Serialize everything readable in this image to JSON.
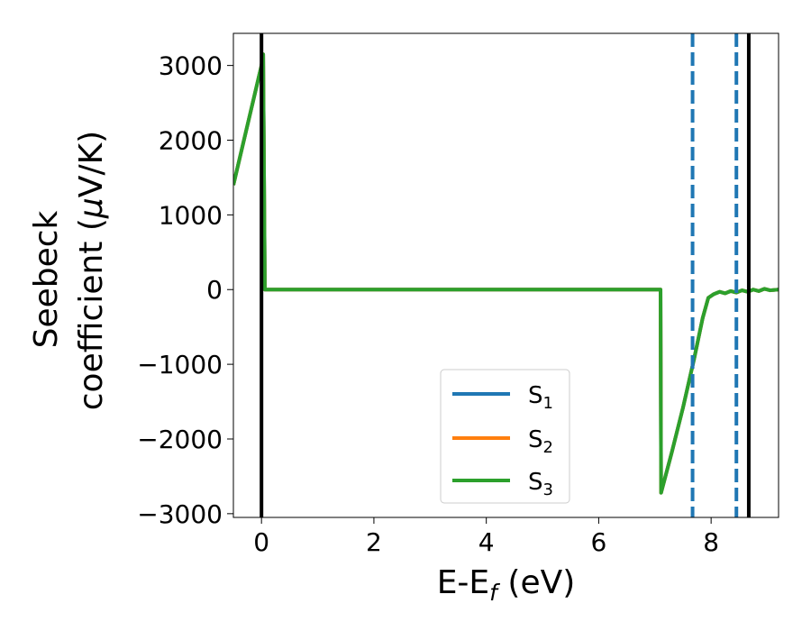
{
  "chart_data": {
    "type": "line",
    "title": "",
    "xlabel": "E-E",
    "xlabel_sub": "f",
    "xlabel_unit": " (eV)",
    "ylabel_line1": "Seebeck",
    "ylabel_line2_prefix": "coefficient  (",
    "ylabel_mu": "μ",
    "ylabel_line2_suffix": "V/K)",
    "xlim": [
      -0.5,
      9.2
    ],
    "ylim": [
      -3050,
      3430
    ],
    "x_ticks": [
      0,
      2,
      4,
      6,
      8
    ],
    "x_tick_labels": [
      "0",
      "2",
      "4",
      "6",
      "8"
    ],
    "y_ticks": [
      -3000,
      -2000,
      -1000,
      0,
      1000,
      2000,
      3000
    ],
    "y_tick_labels": [
      "−3000",
      "−2000",
      "−1000",
      "0",
      "1000",
      "2000",
      "3000"
    ],
    "grid": false,
    "legend_position": "lower-center",
    "series": [
      {
        "name": "S",
        "name_sub": "1",
        "color": "#1f77b4",
        "x": [
          -0.5,
          0.0,
          0.03,
          0.06,
          1.0,
          2.0,
          3.0,
          4.0,
          5.0,
          6.0,
          7.0,
          7.1,
          7.11,
          7.3,
          7.5,
          7.7,
          7.85,
          7.95,
          8.05,
          8.15,
          8.25,
          8.35,
          8.45,
          8.55,
          8.65,
          8.75,
          8.85,
          8.95,
          9.05,
          9.2
        ],
        "y": [
          1400,
          3000,
          3150,
          0,
          0,
          0,
          0,
          0,
          0,
          0,
          0,
          0,
          -2720,
          -2180,
          -1580,
          -920,
          -380,
          -110,
          -60,
          -30,
          -50,
          -20,
          -40,
          -10,
          -30,
          0,
          -20,
          10,
          -10,
          0
        ]
      },
      {
        "name": "S",
        "name_sub": "2",
        "color": "#ff7f0e",
        "x": [
          -0.5,
          0.0,
          0.03,
          0.06,
          1.0,
          2.0,
          3.0,
          4.0,
          5.0,
          6.0,
          7.0,
          7.1,
          7.11,
          7.3,
          7.5,
          7.7,
          7.85,
          7.95,
          8.05,
          8.15,
          8.25,
          8.35,
          8.45,
          8.55,
          8.65,
          8.75,
          8.85,
          8.95,
          9.05,
          9.2
        ],
        "y": [
          1400,
          3000,
          3150,
          0,
          0,
          0,
          0,
          0,
          0,
          0,
          0,
          0,
          -2720,
          -2180,
          -1580,
          -920,
          -380,
          -110,
          -60,
          -30,
          -50,
          -20,
          -40,
          -10,
          -30,
          0,
          -20,
          10,
          -10,
          0
        ]
      },
      {
        "name": "S",
        "name_sub": "3",
        "color": "#2ca02c",
        "x": [
          -0.5,
          0.0,
          0.03,
          0.06,
          1.0,
          2.0,
          3.0,
          4.0,
          5.0,
          6.0,
          7.0,
          7.1,
          7.11,
          7.3,
          7.5,
          7.7,
          7.85,
          7.95,
          8.05,
          8.15,
          8.25,
          8.35,
          8.45,
          8.55,
          8.65,
          8.75,
          8.85,
          8.95,
          9.05,
          9.2
        ],
        "y": [
          1400,
          3000,
          3150,
          0,
          0,
          0,
          0,
          0,
          0,
          0,
          0,
          0,
          -2720,
          -2180,
          -1580,
          -920,
          -380,
          -110,
          -60,
          -30,
          -50,
          -20,
          -40,
          -10,
          -30,
          0,
          -20,
          10,
          -10,
          0
        ]
      }
    ],
    "vertical_lines": [
      {
        "x": 0.0,
        "color": "#000000",
        "style": "solid"
      },
      {
        "x": 8.67,
        "color": "#000000",
        "style": "solid"
      },
      {
        "x": 7.67,
        "color": "#1f77b4",
        "style": "dashed"
      },
      {
        "x": 8.45,
        "color": "#1f77b4",
        "style": "dashed"
      }
    ]
  }
}
